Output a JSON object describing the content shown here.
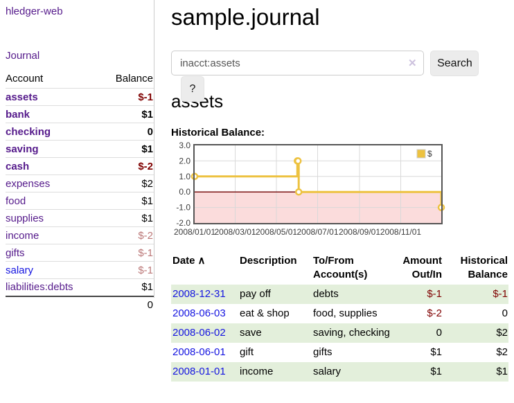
{
  "app": {
    "title": "hledger-web"
  },
  "nav": {
    "journal": "Journal"
  },
  "sidebar": {
    "header": {
      "account": "Account",
      "balance": "Balance"
    },
    "accounts": [
      {
        "name": "assets",
        "balance": "$-1",
        "level": 1,
        "bold": true,
        "link": "purple",
        "balance_class": "neg-strong"
      },
      {
        "name": "bank",
        "balance": "$1",
        "level": 2,
        "bold": true,
        "link": "purple",
        "balance_class": ""
      },
      {
        "name": "checking",
        "balance": "0",
        "level": 3,
        "bold": true,
        "link": "purple",
        "balance_class": ""
      },
      {
        "name": "saving",
        "balance": "$1",
        "level": 3,
        "bold": true,
        "link": "purple",
        "balance_class": ""
      },
      {
        "name": "cash",
        "balance": "$-2",
        "level": 2,
        "bold": true,
        "link": "purple",
        "balance_class": "neg-strong"
      },
      {
        "name": "expenses",
        "balance": "$2",
        "level": 1,
        "bold": false,
        "link": "purple",
        "balance_class": ""
      },
      {
        "name": "food",
        "balance": "$1",
        "level": 2,
        "bold": false,
        "link": "purple",
        "balance_class": ""
      },
      {
        "name": "supplies",
        "balance": "$1",
        "level": 2,
        "bold": false,
        "link": "purple",
        "balance_class": ""
      },
      {
        "name": "income",
        "balance": "$-2",
        "level": 1,
        "bold": false,
        "link": "purple",
        "balance_class": "neg-soft"
      },
      {
        "name": "gifts",
        "balance": "$-1",
        "level": 2,
        "bold": false,
        "link": "purple",
        "balance_class": "neg-soft"
      },
      {
        "name": "salary",
        "balance": "$-1",
        "level": 2,
        "bold": false,
        "link": "blue",
        "balance_class": "neg-soft"
      },
      {
        "name": "liabilities:debts",
        "balance": "$1",
        "level": 1,
        "bold": false,
        "link": "purple",
        "balance_class": ""
      }
    ],
    "total": "0"
  },
  "main": {
    "title": "sample.journal",
    "search": {
      "value": "inacct:assets",
      "clear_icon": "✕",
      "button_label": "Search",
      "help_label": "?"
    },
    "account_heading": "assets",
    "chart_label": "Historical Balance:"
  },
  "chart_data": {
    "type": "line",
    "title": "Historical Balance",
    "step": true,
    "series": [
      {
        "name": "$",
        "color": "#edc240",
        "points": [
          [
            "2008-01-01",
            1
          ],
          [
            "2008-06-01",
            2
          ],
          [
            "2008-06-02",
            2
          ],
          [
            "2008-06-03",
            0
          ],
          [
            "2008-12-31",
            -1
          ]
        ]
      }
    ],
    "xlim": [
      "2008-01-01",
      "2008-12-31"
    ],
    "ylim": [
      -2,
      3
    ],
    "y_ticks": [
      3.0,
      2.0,
      1.0,
      0.0,
      -1.0,
      -2.0
    ],
    "x_ticks": [
      {
        "pos": "2008-01-01",
        "label": "2008/01/01"
      },
      {
        "pos": "2008-03-01",
        "label": "2008/03/01"
      },
      {
        "pos": "2008-05-01",
        "label": "2008/05/01"
      },
      {
        "pos": "2008-07-01",
        "label": "2008/07/01"
      },
      {
        "pos": "2008-09-01",
        "label": "2008/09/01"
      },
      {
        "pos": "2008-11-01",
        "label": "2008/11/01"
      }
    ],
    "legend": {
      "label": "$",
      "position": "top-right"
    },
    "colors": {
      "grid": "#d9d9d9",
      "border": "#545454",
      "negative_region": "#fbdcdc",
      "zero_line": "#7a1111"
    }
  },
  "transactions": {
    "headers": {
      "date": "Date",
      "sort_icon": "∧",
      "description": "Description",
      "account": "To/From Account(s)",
      "amount": "Amount Out/In",
      "balance": "Historical Balance"
    },
    "rows": [
      {
        "date": "2008-12-31",
        "description": "pay off",
        "account": "debts",
        "amount": "$-1",
        "amount_neg": true,
        "balance": "$-1",
        "balance_neg": true,
        "shaded": true
      },
      {
        "date": "2008-06-03",
        "description": "eat & shop",
        "account": "food, supplies",
        "amount": "$-2",
        "amount_neg": true,
        "balance": "0",
        "balance_neg": false,
        "shaded": false
      },
      {
        "date": "2008-06-02",
        "description": "save",
        "account": "saving, checking",
        "amount": "0",
        "amount_neg": false,
        "balance": "$2",
        "balance_neg": false,
        "shaded": true
      },
      {
        "date": "2008-06-01",
        "description": "gift",
        "account": "gifts",
        "amount": "$1",
        "amount_neg": false,
        "balance": "$2",
        "balance_neg": false,
        "shaded": false
      },
      {
        "date": "2008-01-01",
        "description": "income",
        "account": "salary",
        "amount": "$1",
        "amount_neg": false,
        "balance": "$1",
        "balance_neg": false,
        "shaded": true
      }
    ]
  },
  "colors": {
    "purple_link": "#551a8b",
    "blue_link": "#1414e0",
    "negative_strong": "#7f0000",
    "negative_soft": "#bb7777",
    "row_shade_green": "#e3efdb",
    "series_yellow": "#edc240"
  }
}
